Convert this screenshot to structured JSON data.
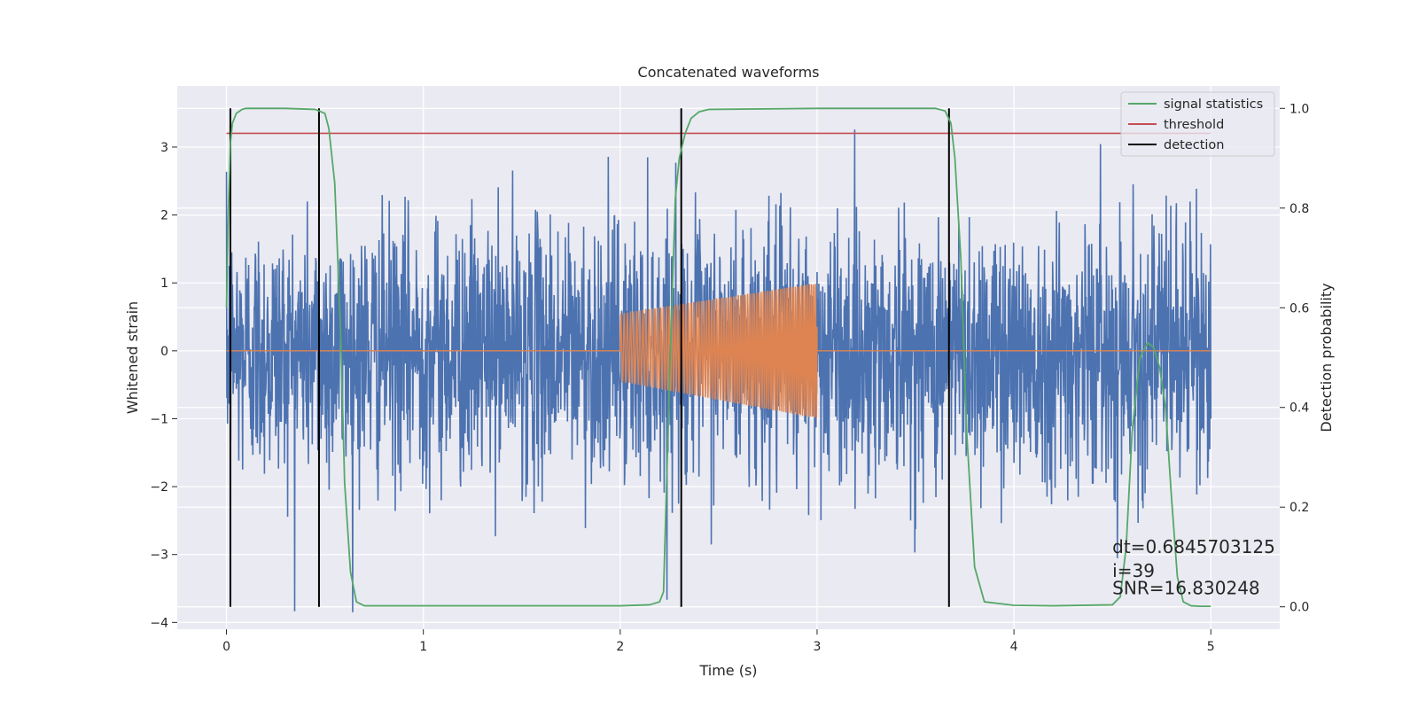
{
  "chart_data": {
    "type": "line",
    "title": "Concatenated waveforms",
    "xlabel": "Time (s)",
    "ylabel": "Whitened strain",
    "y2label": "Detection probability",
    "xlim": [
      -0.25,
      5.35
    ],
    "ylim": [
      -4.1,
      3.9
    ],
    "y2lim": [
      -0.045,
      1.045
    ],
    "xticks": [
      0,
      1,
      2,
      3,
      4,
      5
    ],
    "yticks": [
      -4,
      -3,
      -2,
      -1,
      0,
      1,
      2,
      3
    ],
    "y2ticks": [
      0.0,
      0.2,
      0.4,
      0.6,
      0.8,
      1.0
    ],
    "xtick_labels": [
      "0",
      "1",
      "2",
      "3",
      "4",
      "5"
    ],
    "ytick_labels": [
      "−4",
      "−3",
      "−2",
      "−1",
      "0",
      "1",
      "2",
      "3"
    ],
    "y2tick_labels": [
      "0.0",
      "0.2",
      "0.4",
      "0.6",
      "0.8",
      "1.0"
    ],
    "grid": true,
    "legend_position": "top-right",
    "colors": {
      "noise": "#4c72b0",
      "waveform": "#dd8452",
      "signal_statistics": "#55a868",
      "threshold": "#c44e52",
      "detection": "#000000",
      "background": "#eaeaf2"
    },
    "series": [
      {
        "name": "",
        "kind": "whitened_noise",
        "x_range": [
          0,
          5
        ],
        "amplitude_typical": [
          -2.5,
          2.5
        ],
        "peak_max": 3.55,
        "peak_min": -3.85
      },
      {
        "name": "",
        "kind": "injected_chirp",
        "x_range": [
          2.0,
          3.0
        ],
        "envelope_start": [
          -0.45,
          0.55
        ],
        "envelope_end": [
          -1.0,
          1.0
        ],
        "baseline": 0
      },
      {
        "name": "signal statistics",
        "axis": "right",
        "x": [
          0,
          0.01,
          0.02,
          0.03,
          0.05,
          0.08,
          0.1,
          0.3,
          0.45,
          0.5,
          0.52,
          0.55,
          0.58,
          0.6,
          0.63,
          0.66,
          0.7,
          1.0,
          1.5,
          2.0,
          2.15,
          2.2,
          2.22,
          2.25,
          2.28,
          2.3,
          2.33,
          2.36,
          2.4,
          2.45,
          3.0,
          3.6,
          3.65,
          3.68,
          3.7,
          3.73,
          3.76,
          3.8,
          3.85,
          4.0,
          4.2,
          4.5,
          4.54,
          4.57,
          4.6,
          4.64,
          4.68,
          4.71,
          4.74,
          4.77,
          4.8,
          4.83,
          4.86,
          4.9,
          4.95,
          5.0
        ],
        "y": [
          0.6,
          0.8,
          0.93,
          0.97,
          0.99,
          0.998,
          1.0,
          1.0,
          0.998,
          0.99,
          0.96,
          0.85,
          0.55,
          0.25,
          0.07,
          0.01,
          0.002,
          0.002,
          0.002,
          0.002,
          0.004,
          0.01,
          0.03,
          0.45,
          0.82,
          0.9,
          0.95,
          0.98,
          0.993,
          0.998,
          1.0,
          1.0,
          0.995,
          0.97,
          0.9,
          0.7,
          0.35,
          0.08,
          0.01,
          0.003,
          0.002,
          0.004,
          0.02,
          0.12,
          0.35,
          0.5,
          0.53,
          0.52,
          0.48,
          0.4,
          0.22,
          0.06,
          0.01,
          0.002,
          0.001,
          0.001
        ]
      },
      {
        "name": "threshold",
        "axis": "right",
        "x": [
          0,
          5
        ],
        "y": [
          0.95,
          0.95
        ]
      },
      {
        "name": "detection",
        "axis": "right",
        "kind": "vertical_lines",
        "x": [
          0.02,
          0.47,
          2.31,
          3.67
        ],
        "y_range": [
          0.0,
          1.0
        ]
      }
    ],
    "annotations": [
      {
        "text": "dt=0.6845703125",
        "x": 4.5,
        "y2": 0.108
      },
      {
        "text": " i=39",
        "x": 4.5,
        "y2": 0.06
      },
      {
        "text": "SNR=16.830248",
        "x": 4.5,
        "y2": 0.025
      }
    ]
  }
}
